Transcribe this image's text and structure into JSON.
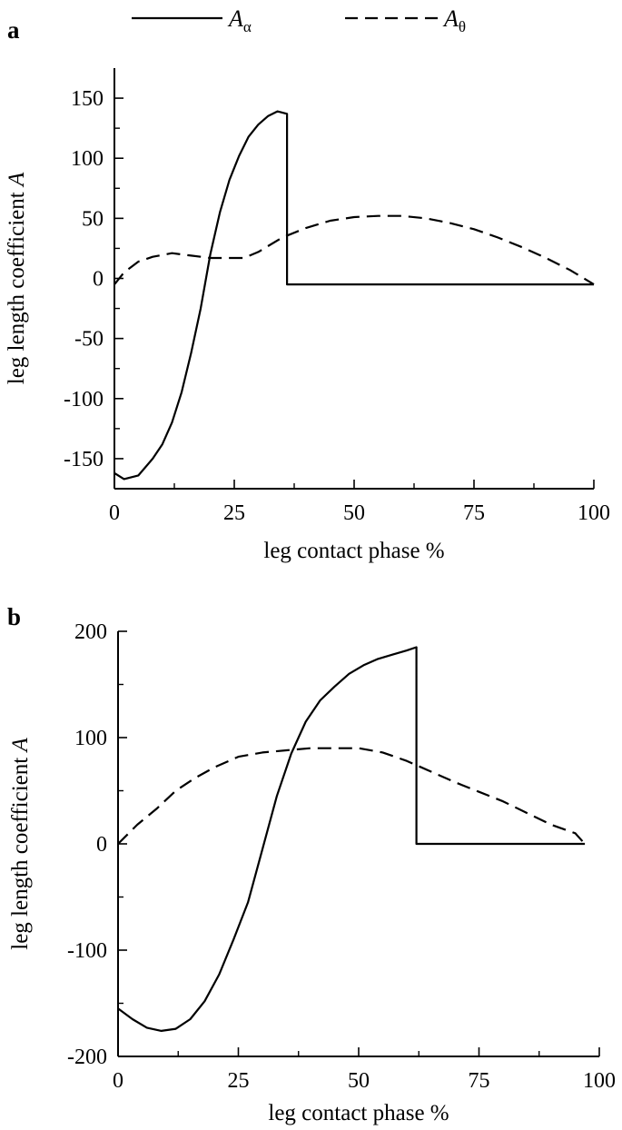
{
  "legend": [
    {
      "key": "A",
      "sub": "α",
      "style": "solid"
    },
    {
      "key": "A",
      "sub": "θ",
      "style": "dashed"
    }
  ],
  "chart_data": [
    {
      "type": "line",
      "panel_label": "a",
      "xlabel": "leg contact phase  %",
      "ylabel_main": "leg length coefficient ",
      "ylabel_symbol": "A",
      "xlim": [
        0,
        100
      ],
      "ylim": [
        -175,
        175
      ],
      "xticks": [
        0,
        25,
        50,
        75,
        100
      ],
      "yticks": [
        -150,
        -100,
        -50,
        0,
        50,
        100,
        150
      ],
      "grid": false,
      "series": [
        {
          "name": "Aα",
          "style": "solid",
          "x": [
            0,
            2,
            5,
            8,
            10,
            12,
            14,
            16,
            18,
            20,
            22,
            24,
            26,
            28,
            30,
            32,
            34,
            36,
            36,
            100
          ],
          "y": [
            -162,
            -167,
            -164,
            -150,
            -138,
            -120,
            -95,
            -62,
            -25,
            20,
            55,
            82,
            102,
            118,
            128,
            135,
            139,
            137,
            -5,
            -5
          ]
        },
        {
          "name": "Aθ",
          "style": "dashed",
          "x": [
            0,
            2,
            5,
            8,
            12,
            16,
            20,
            24,
            27,
            30,
            35,
            40,
            45,
            50,
            55,
            60,
            65,
            70,
            75,
            80,
            85,
            90,
            95,
            100
          ],
          "y": [
            -5,
            5,
            14,
            18,
            21,
            19,
            17,
            17,
            17,
            22,
            34,
            42,
            48,
            51,
            52,
            52,
            50,
            46,
            41,
            34,
            26,
            17,
            7,
            -5
          ]
        }
      ]
    },
    {
      "type": "line",
      "panel_label": "b",
      "xlabel": "leg contact phase  %",
      "ylabel_main": "leg length coefficient ",
      "ylabel_symbol": "A",
      "xlim": [
        0,
        100
      ],
      "ylim": [
        -200,
        200
      ],
      "xticks": [
        0,
        25,
        50,
        75,
        100
      ],
      "yticks": [
        -200,
        -100,
        0,
        100,
        200
      ],
      "grid": false,
      "series": [
        {
          "name": "Aα",
          "style": "solid",
          "x": [
            0,
            3,
            6,
            9,
            12,
            15,
            18,
            21,
            24,
            27,
            30,
            33,
            36,
            39,
            42,
            45,
            48,
            51,
            54,
            57,
            60,
            62,
            62,
            97
          ],
          "y": [
            -155,
            -165,
            -173,
            -176,
            -174,
            -165,
            -148,
            -123,
            -90,
            -55,
            -5,
            45,
            85,
            115,
            135,
            148,
            160,
            168,
            174,
            178,
            182,
            185,
            0,
            0
          ]
        },
        {
          "name": "Aθ",
          "style": "dashed",
          "x": [
            0,
            4,
            8,
            12,
            16,
            20,
            25,
            30,
            35,
            40,
            45,
            50,
            55,
            60,
            65,
            70,
            75,
            80,
            85,
            90,
            95,
            97
          ],
          "y": [
            0,
            18,
            33,
            50,
            62,
            72,
            82,
            86,
            88,
            90,
            90,
            90,
            86,
            78,
            68,
            58,
            49,
            40,
            29,
            18,
            10,
            0
          ]
        }
      ]
    }
  ]
}
